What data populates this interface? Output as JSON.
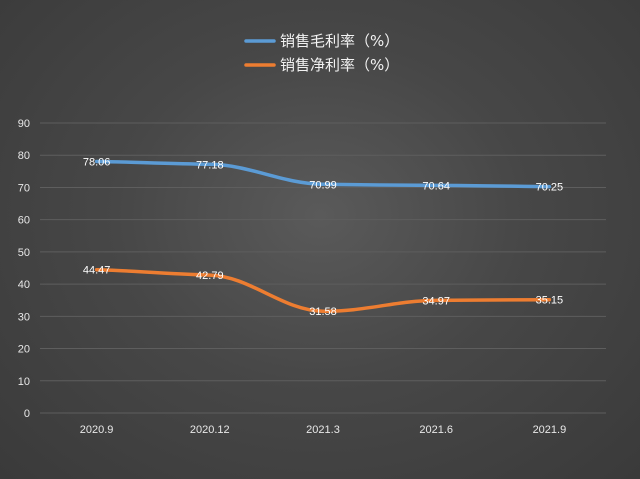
{
  "chart_data": {
    "type": "line",
    "categories": [
      "2020.9",
      "2020.12",
      "2021.3",
      "2021.6",
      "2021.9"
    ],
    "series": [
      {
        "name": "销售毛利率（%）",
        "values": [
          78.06,
          77.18,
          70.99,
          70.64,
          70.25
        ],
        "color": "#5b9bd5",
        "labels": [
          "78.06",
          "77.18",
          "70.99",
          "70.64",
          "70.25"
        ]
      },
      {
        "name": "销售净利率（%）",
        "values": [
          44.47,
          42.79,
          31.58,
          34.97,
          35.15
        ],
        "color": "#ed7d31",
        "labels": [
          "44.47",
          "42.79",
          "31.58",
          "34.97",
          "35.15"
        ]
      }
    ],
    "ylim": [
      0,
      90
    ],
    "yticks": [
      "0",
      "10",
      "20",
      "30",
      "40",
      "50",
      "60",
      "70",
      "80",
      "90"
    ],
    "grid": true,
    "legend": "top-center",
    "smooth": true
  }
}
